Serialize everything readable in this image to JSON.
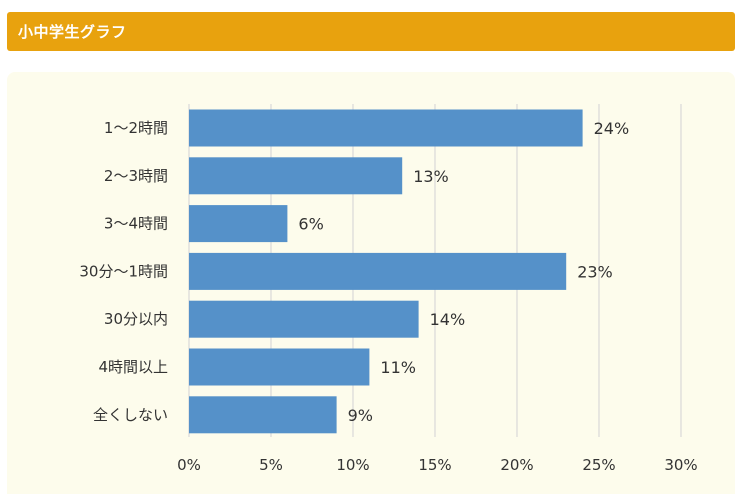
{
  "header": {
    "title": "小中学生グラフ"
  },
  "colors": {
    "header": "#e8a20e",
    "panel": "#fdfcec",
    "bar": "#5591c9",
    "grid": "#d9d9d9"
  },
  "chart_data": {
    "type": "bar",
    "orientation": "horizontal",
    "title": "",
    "xlabel": "",
    "ylabel": "",
    "categories": [
      "1～2時間",
      "2～3時間",
      "3～4時間",
      "30分～1時間",
      "30分以内",
      "4時間以上",
      "全くしない"
    ],
    "values": [
      24,
      13,
      6,
      23,
      14,
      11,
      9
    ],
    "value_labels": [
      "24%",
      "13%",
      "6%",
      "23%",
      "14%",
      "11%",
      "9%"
    ],
    "x_ticks": [
      0,
      5,
      10,
      15,
      20,
      25,
      30
    ],
    "x_tick_labels": [
      "0%",
      "5%",
      "10%",
      "15%",
      "20%",
      "25%",
      "30%"
    ],
    "xlim": [
      0,
      30
    ],
    "grid": true,
    "legend": "none"
  }
}
